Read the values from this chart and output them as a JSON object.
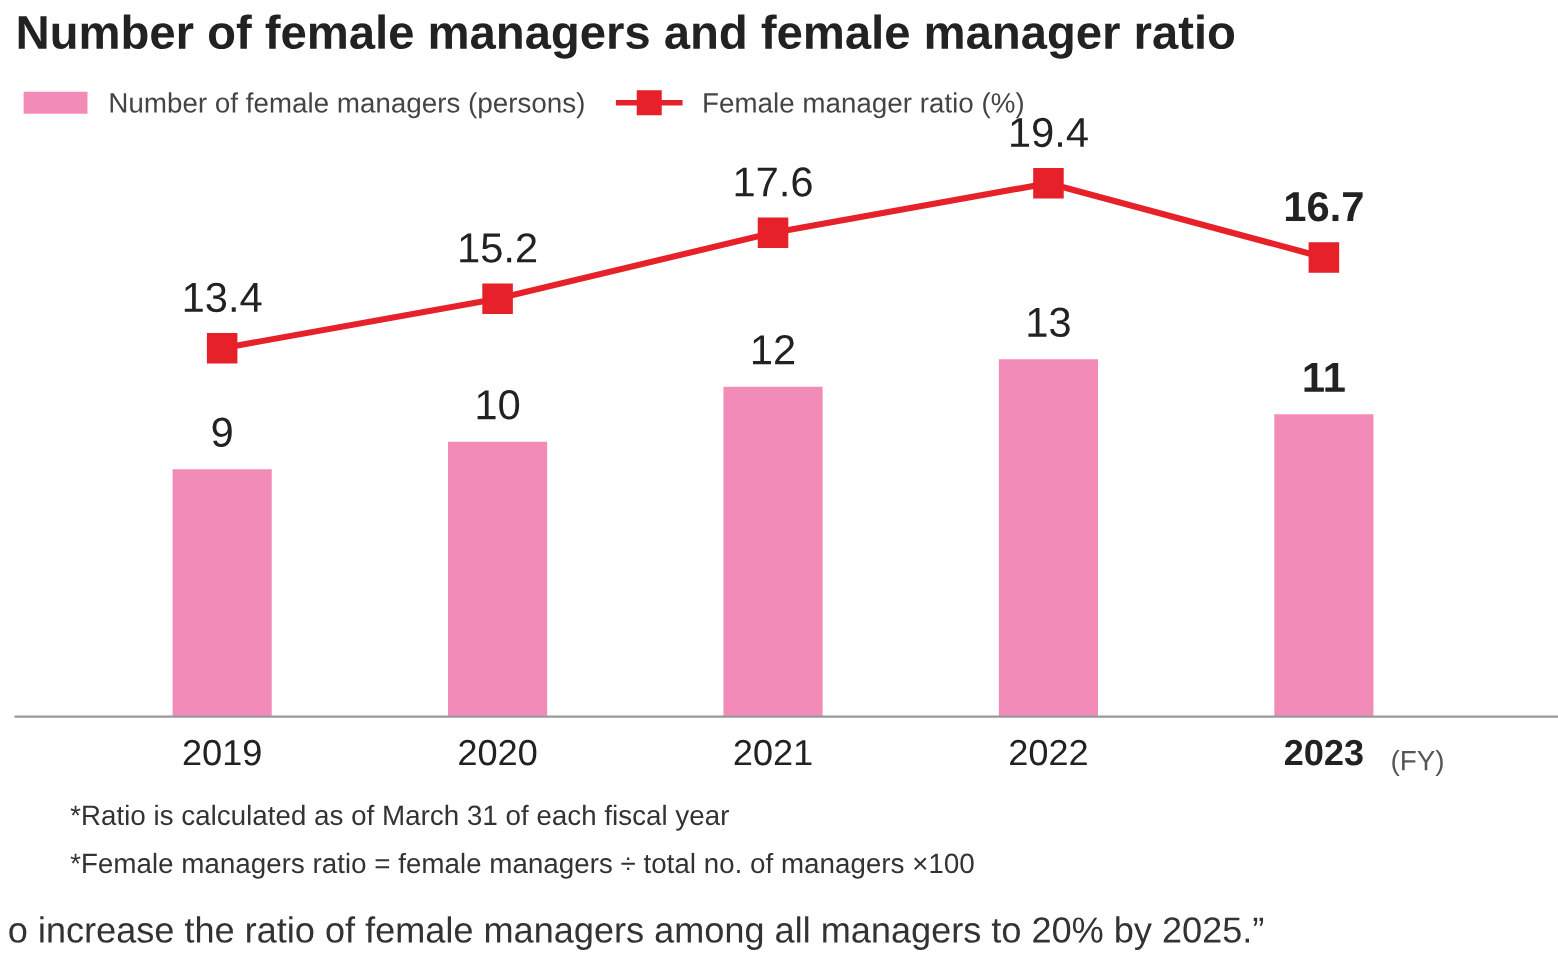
{
  "chart_data": {
    "type": "bar",
    "title": "Number of female managers and female manager ratio",
    "categories": [
      "2019",
      "2020",
      "2021",
      "2022",
      "2023"
    ],
    "xlabel": "(FY)",
    "series": [
      {
        "name": "Number of female managers (persons)",
        "color": "#f28bb8",
        "values": [
          9,
          10,
          12,
          13,
          11
        ]
      },
      {
        "name": "Female manager ratio (%)",
        "type": "line",
        "color": "#e62129",
        "marker": "square",
        "values": [
          13.4,
          15.2,
          17.6,
          19.4,
          16.7
        ]
      }
    ],
    "data_labels": true,
    "tick_labels": "x",
    "grid": false,
    "legend": "top left",
    "annotations": [
      "*Ratio is calculated as of March 31 of each fiscal year",
      "*Female managers ratio = female managers ÷ total no. of managers ×100",
      "o increase the ratio of female managers among all managers to 20% by 2025.”"
    ]
  }
}
